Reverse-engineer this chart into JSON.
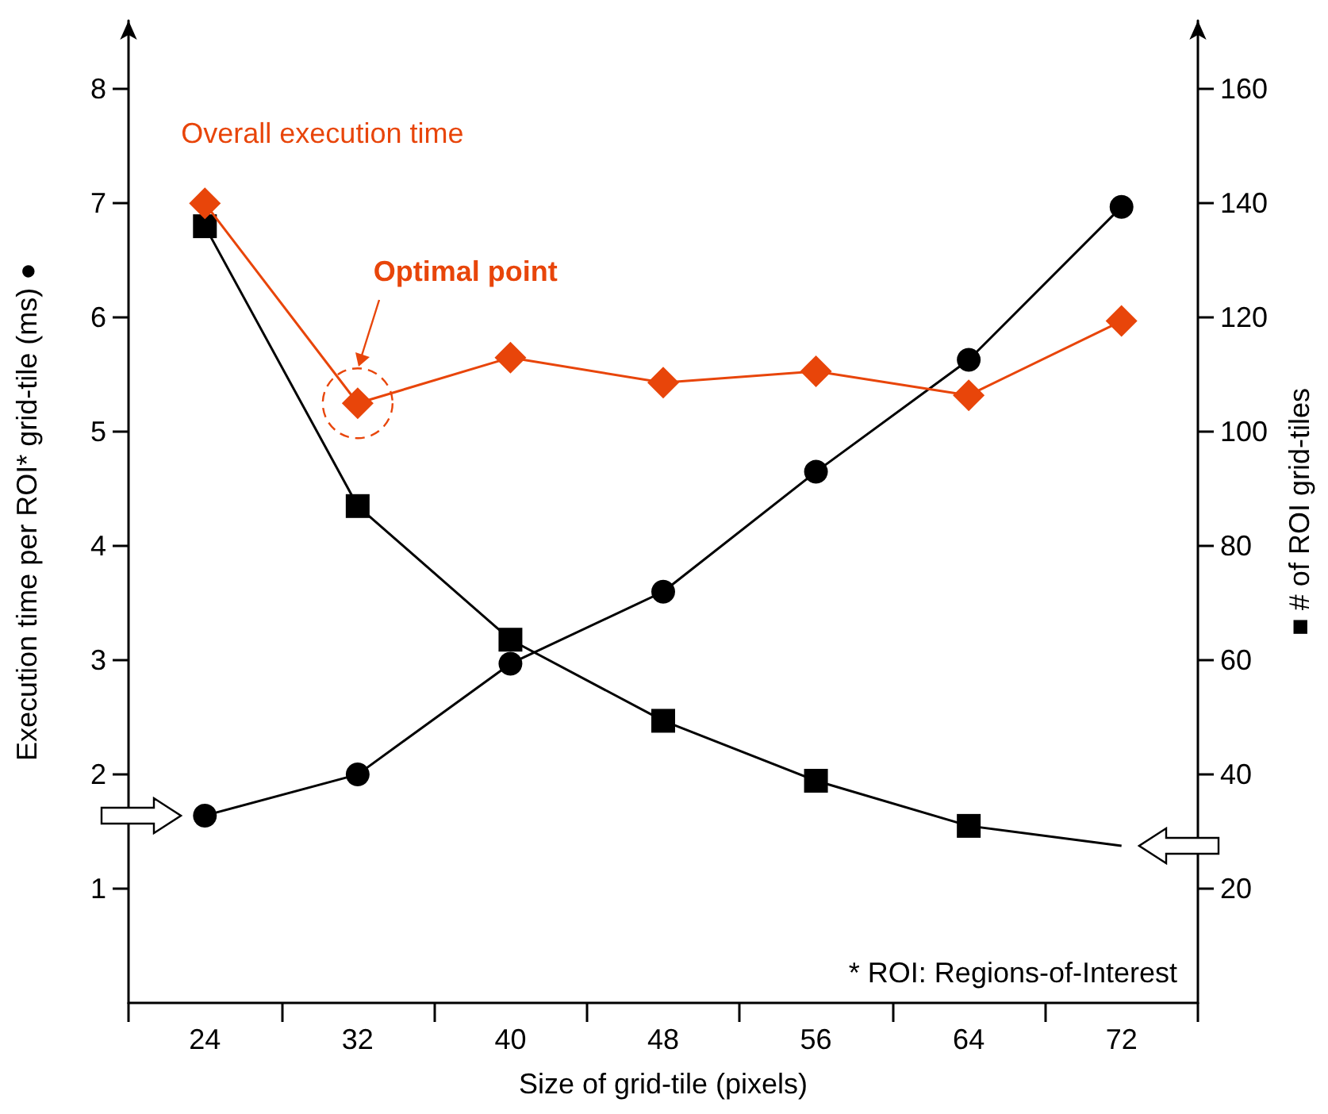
{
  "chart_data": {
    "type": "line",
    "xlabel": "Size of grid-tile (pixels)",
    "ylabel": "Execution time per ROI* grid-tile (ms) ●",
    "y2label": "■ # of ROI grid-tiles",
    "categories": [
      "24",
      "32",
      "40",
      "48",
      "56",
      "64",
      "72"
    ],
    "ylim": [
      0,
      8.6
    ],
    "yticks": [
      1,
      2,
      3,
      4,
      5,
      6,
      7,
      8
    ],
    "y2lim": [
      0,
      172
    ],
    "y2ticks": [
      20,
      40,
      60,
      80,
      100,
      120,
      140,
      160
    ],
    "series": [
      {
        "color": "#000000",
        "marker": "circle",
        "values": [
          1.64,
          2.0,
          2.97,
          3.6,
          4.65,
          5.63,
          6.97
        ]
      },
      {
        "color": "#000000",
        "marker": "square",
        "axis": "y2",
        "values": [
          136,
          87,
          63.6,
          49.4,
          38.9,
          31,
          27.5
        ]
      },
      {
        "name": "Overall execution time",
        "color": "#e8450a",
        "marker": "diamond",
        "values": [
          7.0,
          5.25,
          5.65,
          5.43,
          5.53,
          5.32,
          5.97
        ]
      }
    ],
    "annotations": [
      "Optimal point",
      "* ROI: Regions-of-Interest"
    ],
    "grid": false,
    "legend": false,
    "line_style": "solid"
  }
}
